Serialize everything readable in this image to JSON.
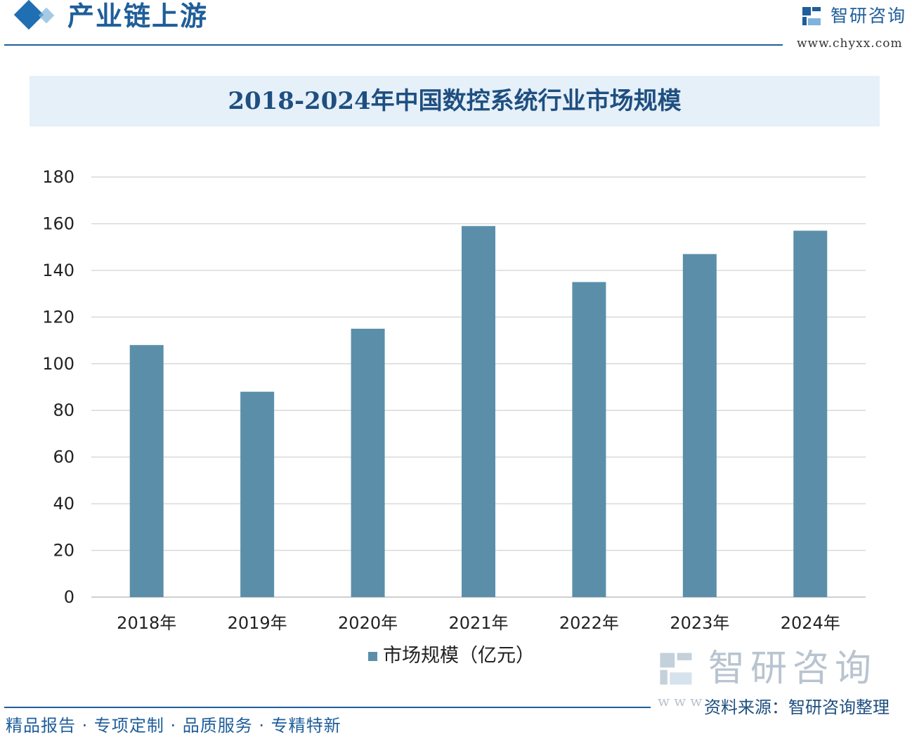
{
  "header": {
    "section_title": "产业链上游",
    "brand_name": "智研咨询",
    "brand_url": "www.chyxx.com"
  },
  "chart_data": {
    "type": "bar",
    "title": "2018-2024年中国数控系统行业市场规模",
    "categories": [
      "2018年",
      "2019年",
      "2020年",
      "2021年",
      "2022年",
      "2023年",
      "2024年"
    ],
    "series": [
      {
        "name": "市场规模（亿元）",
        "values": [
          108,
          88,
          115,
          159,
          135,
          147,
          157
        ],
        "color": "#5b8fa9"
      }
    ],
    "ylim": [
      0,
      180
    ],
    "yticks": [
      "0",
      "20",
      "40",
      "60",
      "80",
      "100",
      "120",
      "140",
      "160",
      "180"
    ],
    "grid": true,
    "legend": "bottom"
  },
  "footer": {
    "tagline": "精品报告 · 专项定制 · 品质服务 · 专精特新",
    "source": "资料来源：智研咨询整理",
    "brand_name": "智研咨询",
    "brand_url": "www.chyxx.com"
  },
  "colors": {
    "primary": "#1f5e9a",
    "bar": "#5b8fa9",
    "banner": "#e6f0f9"
  }
}
